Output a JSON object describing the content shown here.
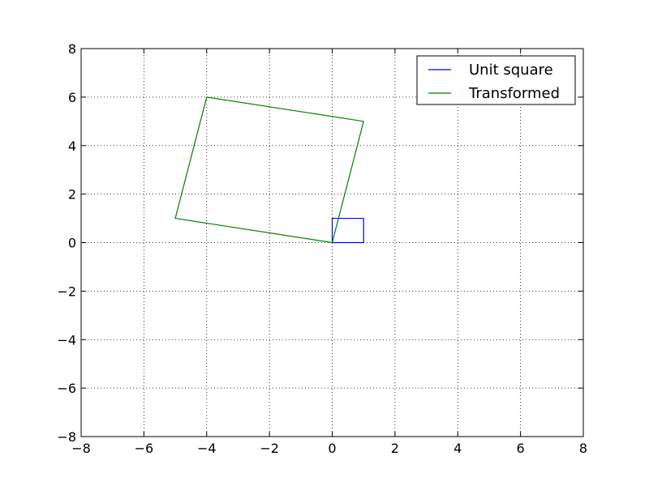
{
  "chart_data": {
    "type": "line",
    "title": "",
    "xlabel": "",
    "ylabel": "",
    "xlim": [
      -8,
      8
    ],
    "ylim": [
      -8,
      8
    ],
    "xticks": [
      -8,
      -6,
      -4,
      -2,
      0,
      2,
      4,
      6,
      8
    ],
    "yticks": [
      -8,
      -6,
      -4,
      -2,
      0,
      2,
      4,
      6,
      8
    ],
    "xtick_labels": [
      "−8",
      "−6",
      "−4",
      "−2",
      "0",
      "2",
      "4",
      "6",
      "8"
    ],
    "ytick_labels": [
      "−8",
      "−6",
      "−4",
      "−2",
      "0",
      "2",
      "4",
      "6",
      "8"
    ],
    "grid": true,
    "legend_position": "top-right",
    "series": [
      {
        "name": "Unit square",
        "color": "#0000ff",
        "x": [
          0,
          1,
          1,
          0,
          0
        ],
        "y": [
          0,
          0,
          1,
          1,
          0
        ]
      },
      {
        "name": "Transformed",
        "color": "#008000",
        "x": [
          0,
          1,
          -4,
          -5,
          0
        ],
        "y": [
          0,
          5,
          6,
          1,
          0
        ]
      }
    ]
  }
}
